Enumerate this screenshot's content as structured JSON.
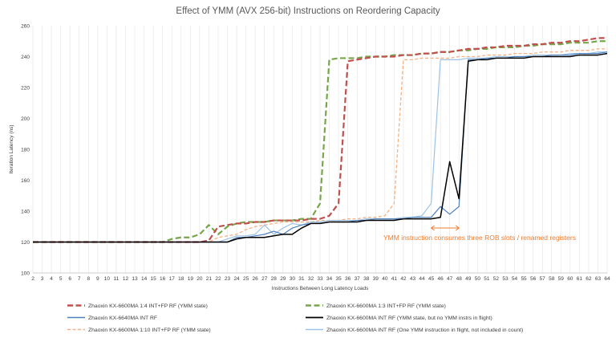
{
  "chart_data": {
    "type": "line",
    "title": "Effect of YMM (AVX 256-bit) Instructions on Reordering Capacity",
    "xlabel": "Instructions Between Long Latency Loads",
    "ylabel": "Iteration Latency (ns)",
    "xlim": [
      2,
      64
    ],
    "ylim": [
      100,
      260
    ],
    "yticks": [
      100,
      120,
      140,
      160,
      180,
      200,
      220,
      240,
      260
    ],
    "grid": "vertical",
    "legend_position": "bottom",
    "x": [
      2,
      3,
      4,
      5,
      6,
      7,
      8,
      9,
      10,
      11,
      12,
      13,
      14,
      15,
      16,
      17,
      18,
      19,
      20,
      21,
      22,
      23,
      24,
      25,
      26,
      27,
      28,
      29,
      30,
      31,
      32,
      33,
      34,
      35,
      36,
      37,
      38,
      39,
      40,
      41,
      42,
      43,
      44,
      45,
      46,
      47,
      48,
      49,
      50,
      51,
      52,
      53,
      54,
      55,
      56,
      57,
      58,
      59,
      60,
      61,
      62,
      63,
      64
    ],
    "series": [
      {
        "name": "Zhaoxin KX-6600MA 1:4 INT+FP RF (YMM state)",
        "color": "#C0504D",
        "dash": "long",
        "width": 2.2,
        "values": [
          120,
          120,
          120,
          120,
          120,
          120,
          120,
          120,
          120,
          120,
          120,
          120,
          120,
          120,
          120,
          120,
          120,
          120,
          120,
          121,
          130,
          131,
          132,
          132,
          133,
          133,
          134,
          134,
          134,
          134,
          135,
          135,
          137,
          145,
          237,
          238,
          239,
          240,
          240,
          240,
          241,
          241,
          242,
          242,
          243,
          243,
          244,
          245,
          245,
          246,
          246,
          247,
          247,
          247,
          248,
          248,
          249,
          249,
          250,
          250,
          251,
          252,
          252
        ]
      },
      {
        "name": "Zhaoxin KX-6600MA 1:3 INT+FP RF (YMM state)",
        "color": "#77A64A",
        "dash": "long",
        "width": 2.2,
        "values": [
          120,
          120,
          120,
          120,
          120,
          120,
          120,
          120,
          120,
          120,
          120,
          120,
          120,
          120,
          120,
          122,
          123,
          123,
          125,
          131,
          125,
          130,
          132,
          133,
          133,
          133,
          134,
          134,
          134,
          135,
          135,
          145,
          238,
          239,
          239,
          239,
          240,
          240,
          240,
          241,
          241,
          241,
          242,
          242,
          243,
          243,
          244,
          244,
          245,
          245,
          246,
          246,
          246,
          247,
          247,
          248,
          248,
          248,
          249,
          249,
          249,
          250,
          250
        ]
      },
      {
        "name": "Zhaoxin KX-6640MA INT RF",
        "color": "#4F81BD",
        "dash": "solid",
        "width": 1.2,
        "values": [
          120,
          120,
          120,
          120,
          120,
          120,
          120,
          120,
          120,
          120,
          120,
          120,
          120,
          120,
          120,
          120,
          120,
          120,
          120,
          120,
          120,
          120,
          123,
          123,
          124,
          125,
          127,
          125,
          129,
          131,
          132,
          132,
          133,
          133,
          133,
          134,
          134,
          135,
          135,
          135,
          135,
          136,
          136,
          136,
          143,
          138,
          143,
          238,
          238,
          239,
          239,
          239,
          240,
          240,
          240,
          240,
          241,
          241,
          241,
          242,
          242,
          242,
          243
        ]
      },
      {
        "name": "Zhaoxin KX-6600MA INT RF (YMM state, but no YMM instrs in flight)",
        "color": "#000000",
        "dash": "solid",
        "width": 1.5,
        "values": [
          120,
          120,
          120,
          120,
          120,
          120,
          120,
          120,
          120,
          120,
          120,
          120,
          120,
          120,
          120,
          120,
          120,
          120,
          120,
          120,
          120,
          120,
          122,
          123,
          123,
          123,
          124,
          125,
          125,
          129,
          132,
          132,
          133,
          133,
          133,
          133,
          134,
          134,
          134,
          134,
          135,
          135,
          135,
          135,
          136,
          172,
          148,
          237,
          238,
          238,
          239,
          239,
          239,
          239,
          240,
          240,
          240,
          240,
          240,
          241,
          241,
          241,
          242
        ]
      },
      {
        "name": "Zhaoxin KX-6600MA 1:10 INT+FP RF (YMM state)",
        "color": "#F4B183",
        "dash": "short",
        "width": 1.3,
        "values": [
          120,
          120,
          120,
          120,
          120,
          120,
          120,
          120,
          120,
          120,
          120,
          120,
          120,
          120,
          120,
          120,
          120,
          120,
          120,
          120,
          123,
          124,
          125,
          128,
          130,
          131,
          132,
          133,
          133,
          133,
          133,
          134,
          134,
          134,
          135,
          135,
          136,
          136,
          137,
          145,
          238,
          238,
          239,
          239,
          239,
          239,
          240,
          240,
          240,
          241,
          241,
          241,
          242,
          242,
          242,
          243,
          243,
          243,
          244,
          244,
          244,
          245,
          245
        ]
      },
      {
        "name": "Zhaoxin KX-6600MA INT RF (One YMM instruction in flight, not included in count)",
        "color": "#9DC3E6",
        "dash": "solid",
        "width": 1.2,
        "values": [
          120,
          120,
          120,
          120,
          120,
          120,
          120,
          120,
          120,
          120,
          120,
          120,
          120,
          120,
          120,
          120,
          120,
          120,
          120,
          120,
          120,
          122,
          124,
          124,
          125,
          131,
          125,
          129,
          132,
          131,
          133,
          133,
          134,
          134,
          134,
          134,
          135,
          135,
          135,
          135,
          136,
          136,
          137,
          145,
          238,
          238,
          238,
          239,
          239,
          239,
          240,
          240,
          240,
          240,
          241,
          241,
          241,
          241,
          242,
          242,
          242,
          243,
          243
        ]
      }
    ],
    "annotation": {
      "text": "YMM instruction consumes three ROB slots / renamed registers",
      "color": "#ED7D31",
      "arrow_from_x": 45,
      "arrow_to_x": 48,
      "arrow_y": 284
    }
  }
}
